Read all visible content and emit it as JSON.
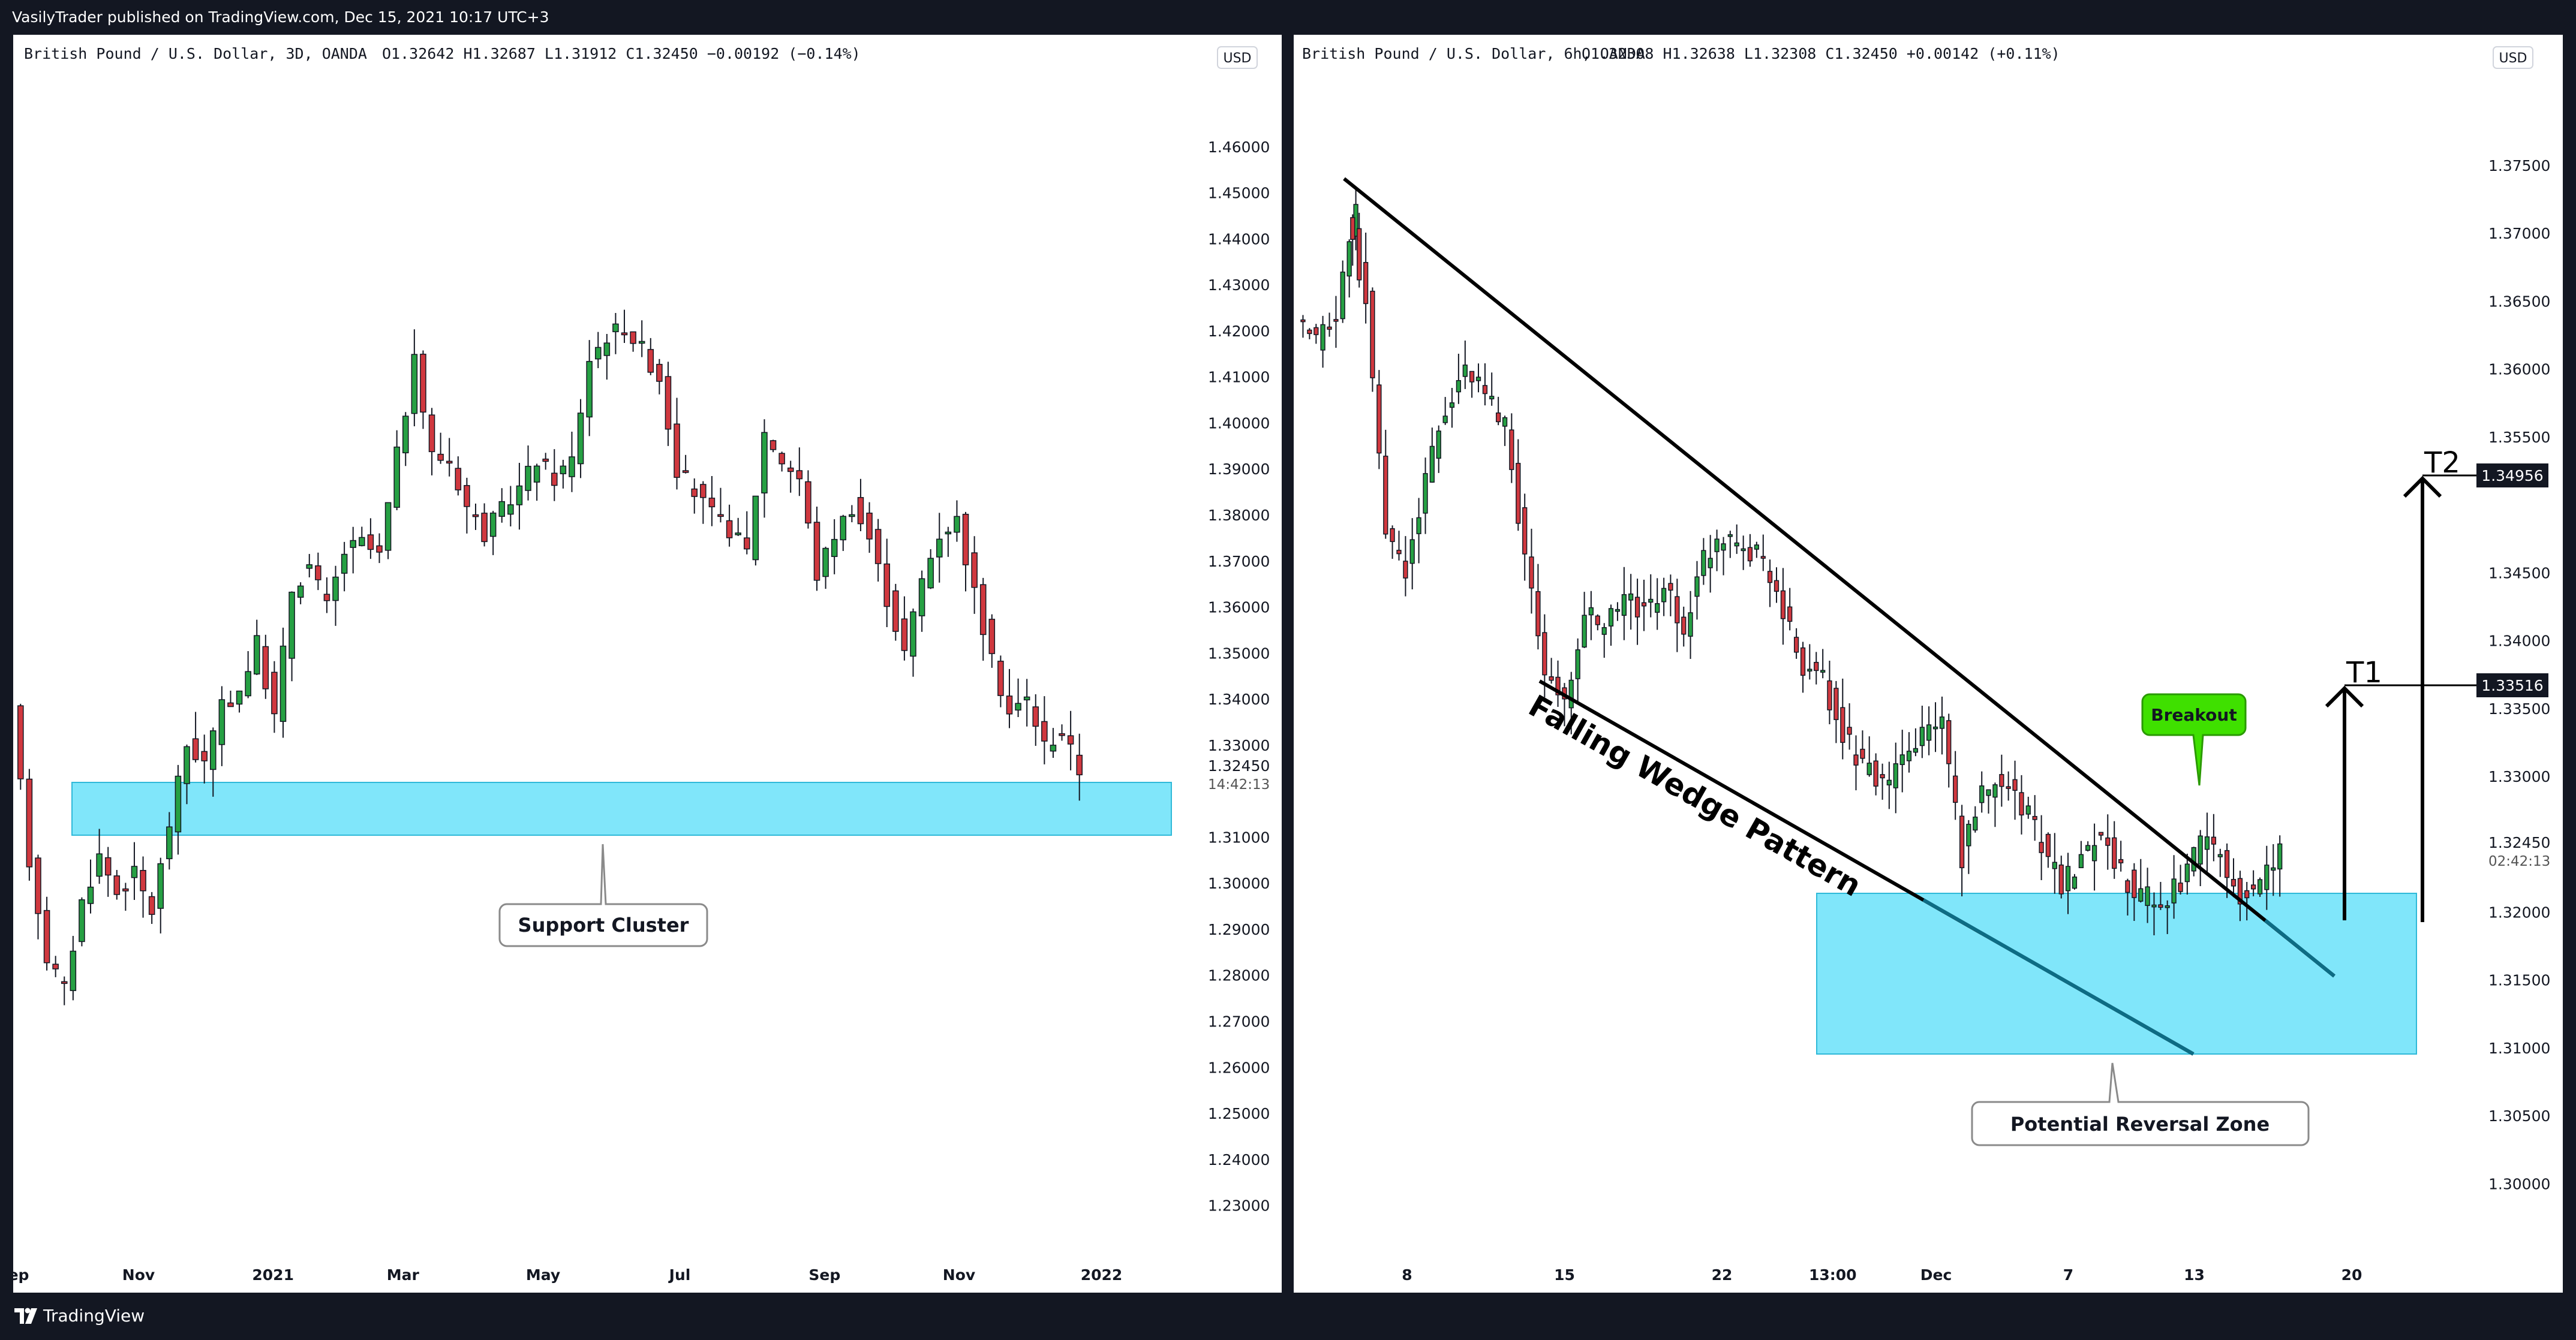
{
  "header": {
    "publish_text": "VasilyTrader published on TradingView.com, Dec 15, 2021 10:17 UTC+3"
  },
  "footer": {
    "brand": "TradingView"
  },
  "colors": {
    "up": "#26a043",
    "down": "#d0383f",
    "zone": "#80e6fa",
    "zone_border": "#2fb9d8",
    "breakout": "#3fe000",
    "line": "#000000",
    "price_label_bg": "#131722"
  },
  "chart_data": [
    {
      "type": "candlestick",
      "title": "British Pound / U.S. Dollar, 3D, OANDA",
      "ohlc_text": "O1.32642  H1.32687  L1.31912  C1.32450  −0.00192 (−0.14%)",
      "currency": "USD",
      "ylim": [
        1.225,
        1.47
      ],
      "y_ticks": [
        "1.46000",
        "1.45000",
        "1.44000",
        "1.43000",
        "1.42000",
        "1.41000",
        "1.40000",
        "1.39000",
        "1.38000",
        "1.37000",
        "1.36000",
        "1.35000",
        "1.34000",
        "1.33000",
        "1.31000",
        "1.30000",
        "1.29000",
        "1.28000",
        "1.27000",
        "1.26000",
        "1.25000",
        "1.24000",
        "1.23000"
      ],
      "x_ticks": [
        {
          "label": "Sep",
          "x": 0.0
        },
        {
          "label": "Nov",
          "x": 0.11
        },
        {
          "label": "2021",
          "x": 0.228
        },
        {
          "label": "Mar",
          "x": 0.342
        },
        {
          "label": "May",
          "x": 0.465
        },
        {
          "label": "Jul",
          "x": 0.585
        },
        {
          "label": "Sep",
          "x": 0.712
        },
        {
          "label": "Nov",
          "x": 0.83
        },
        {
          "label": "2022",
          "x": 0.955
        }
      ],
      "last_price": {
        "value": "1.32450",
        "countdown": "14:42:13"
      },
      "support_zone": {
        "low": 1.3105,
        "high": 1.322
      },
      "callout": {
        "text": "Support Cluster"
      },
      "series": [
        {
          "t": 0,
          "v": 1.337
        },
        {
          "t": 6,
          "v": 1.305
        },
        {
          "t": 12,
          "v": 1.284
        },
        {
          "t": 18,
          "v": 1.277
        },
        {
          "t": 24,
          "v": 1.296
        },
        {
          "t": 30,
          "v": 1.306
        },
        {
          "t": 36,
          "v": 1.298
        },
        {
          "t": 42,
          "v": 1.302
        },
        {
          "t": 48,
          "v": 1.294
        },
        {
          "t": 54,
          "v": 1.313
        },
        {
          "t": 60,
          "v": 1.33
        },
        {
          "t": 66,
          "v": 1.326
        },
        {
          "t": 72,
          "v": 1.338
        },
        {
          "t": 78,
          "v": 1.342
        },
        {
          "t": 84,
          "v": 1.352
        },
        {
          "t": 90,
          "v": 1.336
        },
        {
          "t": 96,
          "v": 1.364
        },
        {
          "t": 102,
          "v": 1.369
        },
        {
          "t": 108,
          "v": 1.36
        },
        {
          "t": 114,
          "v": 1.372
        },
        {
          "t": 120,
          "v": 1.374
        },
        {
          "t": 126,
          "v": 1.371
        },
        {
          "t": 132,
          "v": 1.393
        },
        {
          "t": 138,
          "v": 1.413
        },
        {
          "t": 144,
          "v": 1.393
        },
        {
          "t": 150,
          "v": 1.392
        },
        {
          "t": 156,
          "v": 1.382
        },
        {
          "t": 162,
          "v": 1.376
        },
        {
          "t": 168,
          "v": 1.381
        },
        {
          "t": 174,
          "v": 1.386
        },
        {
          "t": 180,
          "v": 1.392
        },
        {
          "t": 186,
          "v": 1.388
        },
        {
          "t": 192,
          "v": 1.392
        },
        {
          "t": 198,
          "v": 1.414
        },
        {
          "t": 204,
          "v": 1.419
        },
        {
          "t": 210,
          "v": 1.421
        },
        {
          "t": 216,
          "v": 1.416
        },
        {
          "t": 222,
          "v": 1.41
        },
        {
          "t": 228,
          "v": 1.39
        },
        {
          "t": 234,
          "v": 1.385
        },
        {
          "t": 240,
          "v": 1.38
        },
        {
          "t": 246,
          "v": 1.377
        },
        {
          "t": 252,
          "v": 1.372
        },
        {
          "t": 258,
          "v": 1.398
        },
        {
          "t": 264,
          "v": 1.392
        },
        {
          "t": 270,
          "v": 1.388
        },
        {
          "t": 276,
          "v": 1.367
        },
        {
          "t": 282,
          "v": 1.376
        },
        {
          "t": 288,
          "v": 1.382
        },
        {
          "t": 294,
          "v": 1.375
        },
        {
          "t": 300,
          "v": 1.362
        },
        {
          "t": 306,
          "v": 1.35
        },
        {
          "t": 312,
          "v": 1.366
        },
        {
          "t": 318,
          "v": 1.376
        },
        {
          "t": 324,
          "v": 1.379
        },
        {
          "t": 330,
          "v": 1.363
        },
        {
          "t": 336,
          "v": 1.348
        },
        {
          "t": 342,
          "v": 1.337
        },
        {
          "t": 348,
          "v": 1.34
        },
        {
          "t": 354,
          "v": 1.33
        },
        {
          "t": 360,
          "v": 1.333
        },
        {
          "t": 366,
          "v": 1.3245
        }
      ]
    },
    {
      "type": "candlestick",
      "title": "British Pound / U.S. Dollar, 6h, OANDA",
      "ohlc_text": "O1.32308  H1.32638  L1.32308  C1.32450  +0.00142 (+0.11%)",
      "currency": "USD",
      "ylim": [
        1.2945,
        1.3795
      ],
      "y_ticks": [
        "1.37500",
        "1.37000",
        "1.36500",
        "1.36000",
        "1.35500",
        "1.34500",
        "1.34000",
        "1.33500",
        "1.33000",
        "1.32000",
        "1.31500",
        "1.31000",
        "1.30500",
        "1.30000"
      ],
      "x_ticks": [
        {
          "label": "8",
          "x": 0.09
        },
        {
          "label": "15",
          "x": 0.215
        },
        {
          "label": "22",
          "x": 0.34
        },
        {
          "label": "13:00",
          "x": 0.428
        },
        {
          "label": "Dec",
          "x": 0.51
        },
        {
          "label": "7",
          "x": 0.615
        },
        {
          "label": "13",
          "x": 0.715
        },
        {
          "label": "20",
          "x": 0.84
        }
      ],
      "last_price": {
        "value": "1.32450",
        "countdown": "02:42:13"
      },
      "price_labels": [
        {
          "label": "T2",
          "value": "1.34956",
          "price": 1.3496
        },
        {
          "label": "T1",
          "value": "1.33516",
          "price": 1.3352
        }
      ],
      "reversal_zone": {
        "low": 1.31,
        "high": 1.321
      },
      "pattern_label": "Falling Wedge Pattern",
      "breakout_label": "Breakout",
      "callout": {
        "text": "Potential Reversal Zone"
      },
      "series": [
        {
          "t": 0,
          "v": 1.363
        },
        {
          "t": 4,
          "v": 1.362
        },
        {
          "t": 8,
          "v": 1.364
        },
        {
          "t": 10,
          "v": 1.372
        },
        {
          "t": 14,
          "v": 1.365
        },
        {
          "t": 18,
          "v": 1.348
        },
        {
          "t": 22,
          "v": 1.345
        },
        {
          "t": 26,
          "v": 1.352
        },
        {
          "t": 30,
          "v": 1.357
        },
        {
          "t": 34,
          "v": 1.36
        },
        {
          "t": 38,
          "v": 1.358
        },
        {
          "t": 42,
          "v": 1.356
        },
        {
          "t": 46,
          "v": 1.346
        },
        {
          "t": 50,
          "v": 1.338
        },
        {
          "t": 54,
          "v": 1.335
        },
        {
          "t": 58,
          "v": 1.342
        },
        {
          "t": 62,
          "v": 1.341
        },
        {
          "t": 66,
          "v": 1.343
        },
        {
          "t": 70,
          "v": 1.342
        },
        {
          "t": 74,
          "v": 1.344
        },
        {
          "t": 78,
          "v": 1.341
        },
        {
          "t": 82,
          "v": 1.346
        },
        {
          "t": 86,
          "v": 1.348
        },
        {
          "t": 90,
          "v": 1.347
        },
        {
          "t": 94,
          "v": 1.346
        },
        {
          "t": 98,
          "v": 1.342
        },
        {
          "t": 102,
          "v": 1.338
        },
        {
          "t": 106,
          "v": 1.337
        },
        {
          "t": 110,
          "v": 1.333
        },
        {
          "t": 114,
          "v": 1.331
        },
        {
          "t": 118,
          "v": 1.329
        },
        {
          "t": 122,
          "v": 1.331
        },
        {
          "t": 126,
          "v": 1.333
        },
        {
          "t": 130,
          "v": 1.334
        },
        {
          "t": 134,
          "v": 1.324
        },
        {
          "t": 138,
          "v": 1.329
        },
        {
          "t": 142,
          "v": 1.33
        },
        {
          "t": 146,
          "v": 1.328
        },
        {
          "t": 150,
          "v": 1.325
        },
        {
          "t": 154,
          "v": 1.322
        },
        {
          "t": 158,
          "v": 1.324
        },
        {
          "t": 162,
          "v": 1.326
        },
        {
          "t": 166,
          "v": 1.323
        },
        {
          "t": 170,
          "v": 1.321
        },
        {
          "t": 174,
          "v": 1.321
        },
        {
          "t": 178,
          "v": 1.322
        },
        {
          "t": 182,
          "v": 1.325
        },
        {
          "t": 186,
          "v": 1.324
        },
        {
          "t": 190,
          "v": 1.321
        },
        {
          "t": 194,
          "v": 1.3225
        },
        {
          "t": 198,
          "v": 1.3245
        }
      ]
    }
  ]
}
